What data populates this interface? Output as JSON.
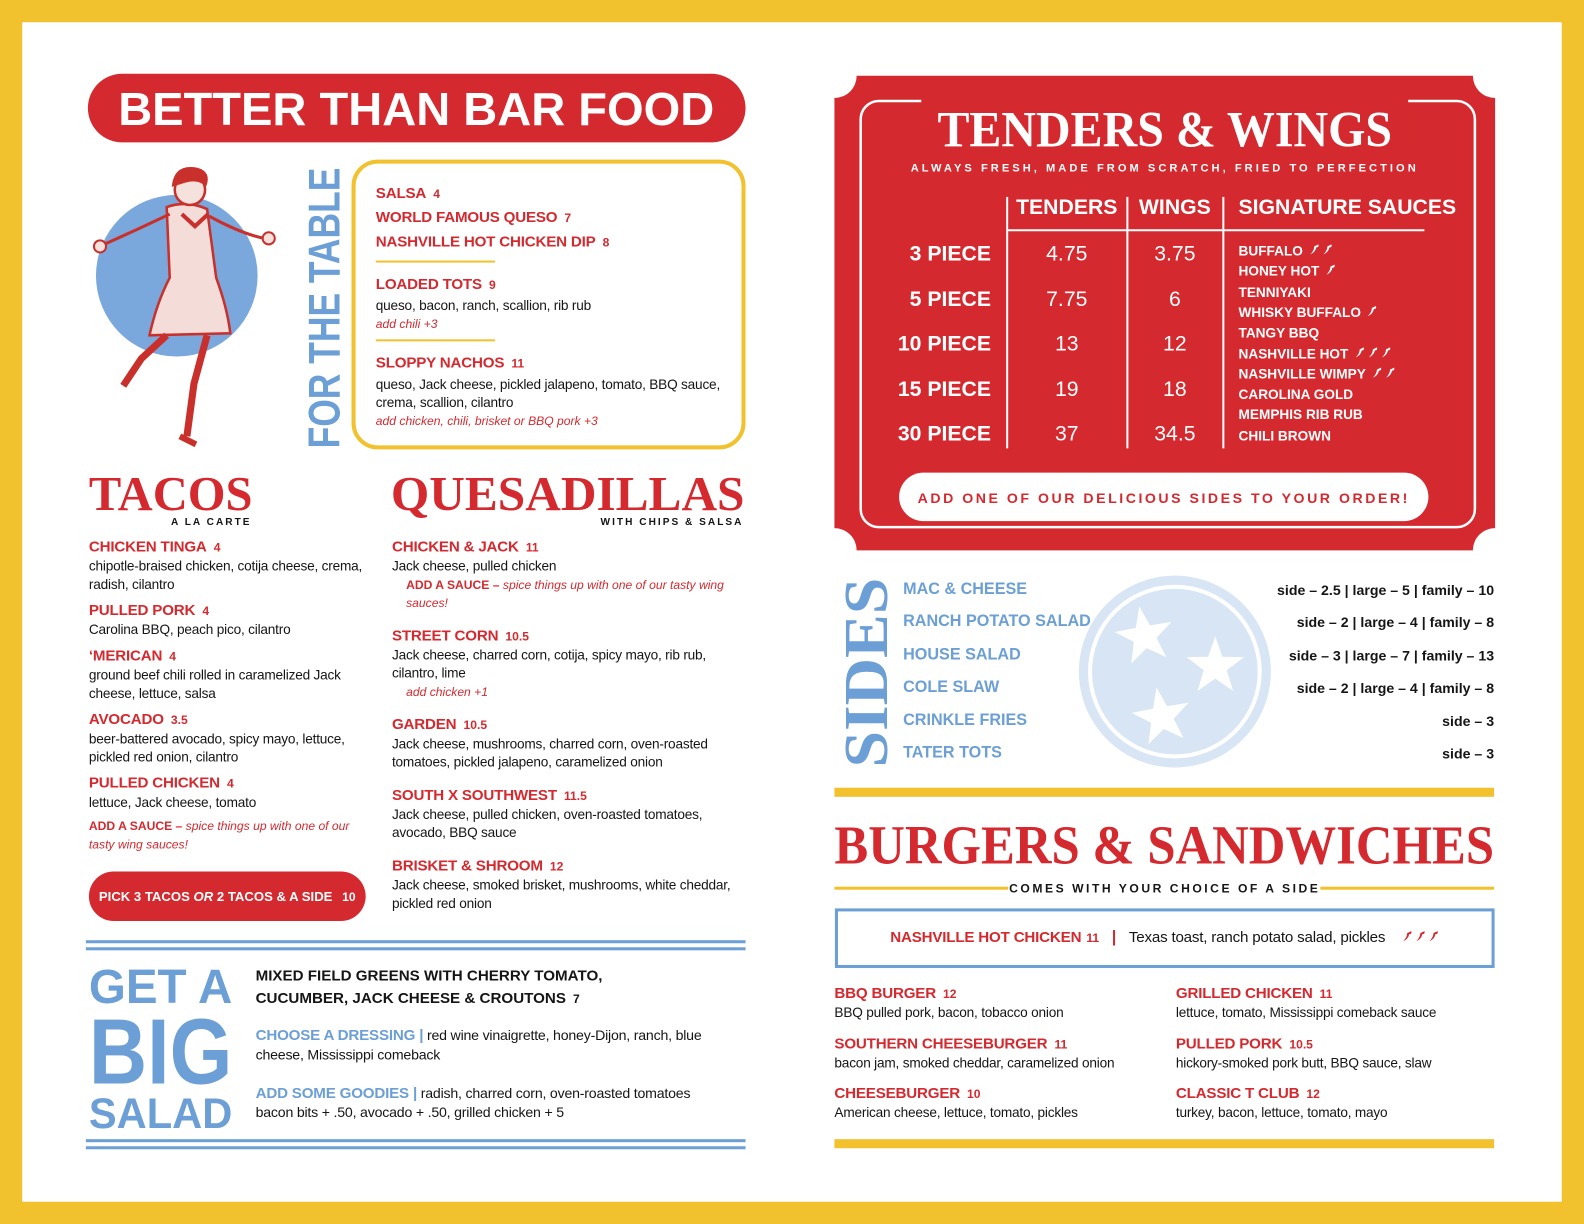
{
  "header": {
    "title": "BETTER THAN BAR FOOD"
  },
  "for_the_table": {
    "title": "FOR THE TABLE",
    "items": [
      {
        "name": "SALSA",
        "price": "4"
      },
      {
        "name": "WORLD FAMOUS QUESO",
        "price": "7"
      },
      {
        "name": "NASHVILLE HOT CHICKEN DIP",
        "price": "8"
      },
      {
        "name": "LOADED TOTS",
        "price": "9",
        "description": "queso, bacon, ranch, scallion, rib rub",
        "note": "add chili +3"
      },
      {
        "name": "SLOPPY NACHOS",
        "price": "11",
        "description": "queso, Jack cheese, pickled jalapeno, tomato, BBQ sauce, crema, scallion, cilantro",
        "note": "add chicken, chili, brisket or BBQ pork +3"
      }
    ]
  },
  "tacos": {
    "title": "TACOS",
    "subtitle": "A LA CARTE",
    "items": [
      {
        "name": "CHICKEN TINGA",
        "price": "4",
        "description": "chipotle-braised chicken, cotija cheese, crema, radish, cilantro"
      },
      {
        "name": "PULLED PORK",
        "price": "4",
        "description": "Carolina BBQ, peach pico, cilantro"
      },
      {
        "name": "‘MERICAN",
        "price": "4",
        "description": "ground beef chili rolled in caramelized Jack cheese, lettuce, salsa"
      },
      {
        "name": "AVOCADO",
        "price": "3.5",
        "description": "beer-battered avocado, spicy mayo, lettuce, pickled red onion, cilantro"
      },
      {
        "name": "PULLED CHICKEN",
        "price": "4",
        "description": "lettuce, Jack cheese, tomato"
      }
    ],
    "note": {
      "label": "ADD A SAUCE –",
      "text": "spice things up with one of our tasty wing sauces!"
    },
    "deal": {
      "parts": [
        "PICK 3 TACOS",
        "OR",
        "2 TACOS & A SIDE"
      ],
      "price": "10"
    }
  },
  "quesadillas": {
    "title": "QUESADILLAS",
    "subtitle": "WITH CHIPS & SALSA",
    "items": [
      {
        "name": "CHICKEN & JACK",
        "price": "11",
        "description": "Jack cheese, pulled chicken",
        "note_label": "ADD A SAUCE –",
        "note": "spice things up with one of our tasty wing sauces!"
      },
      {
        "name": "STREET CORN",
        "price": "10.5",
        "description": "Jack cheese, charred corn, cotija, spicy mayo, rib rub, cilantro, lime",
        "note": "add chicken +1"
      },
      {
        "name": "GARDEN",
        "price": "10.5",
        "description": "Jack cheese, mushrooms, charred corn, oven-roasted tomatoes, pickled jalapeno, caramelized onion"
      },
      {
        "name": "SOUTH X SOUTHWEST",
        "price": "11.5",
        "description": "Jack cheese, pulled chicken, oven-roasted tomatoes, avocado, BBQ sauce"
      },
      {
        "name": "BRISKET & SHROOM",
        "price": "12",
        "description": "Jack cheese, smoked brisket, mushrooms, white cheddar, pickled red onion"
      }
    ]
  },
  "salad": {
    "title": [
      "GET A",
      "BIG",
      "SALAD"
    ],
    "description": "MIXED FIELD GREENS WITH CHERRY TOMATO, CUCUMBER, JACK CHEESE & CROUTONS",
    "price": "7",
    "dressing": {
      "label": "CHOOSE A DRESSING |",
      "text": "red wine vinaigrette, honey-Dijon, ranch, blue cheese, Mississippi comeback"
    },
    "goodies": {
      "label": "ADD SOME GOODIES |",
      "text": "radish, charred corn, oven-roasted tomatoes bacon bits + .50, avocado + .50, grilled chicken + 5"
    }
  },
  "tenders_wings": {
    "title": "TENDERS & WINGS",
    "subtitle": "ALWAYS FRESH, MADE FROM SCRATCH, FRIED TO PERFECTION",
    "columns": [
      "TENDERS",
      "WINGS",
      "SIGNATURE SAUCES"
    ],
    "rows": [
      {
        "label": "3 PIECE",
        "tenders": "4.75",
        "wings": "3.75"
      },
      {
        "label": "5 PIECE",
        "tenders": "7.75",
        "wings": "6"
      },
      {
        "label": "10 PIECE",
        "tenders": "13",
        "wings": "12"
      },
      {
        "label": "15 PIECE",
        "tenders": "19",
        "wings": "18"
      },
      {
        "label": "30 PIECE",
        "tenders": "37",
        "wings": "34.5"
      }
    ],
    "sauces": [
      {
        "name": "BUFFALO",
        "heat": 2
      },
      {
        "name": "HONEY HOT",
        "heat": 1
      },
      {
        "name": "TENNIYAKI",
        "heat": 0
      },
      {
        "name": "WHISKY BUFFALO",
        "heat": 1
      },
      {
        "name": "TANGY BBQ",
        "heat": 0
      },
      {
        "name": "NASHVILLE HOT",
        "heat": 3
      },
      {
        "name": "NASHVILLE WIMPY",
        "heat": 2
      },
      {
        "name": "CAROLINA GOLD",
        "heat": 0
      },
      {
        "name": "MEMPHIS RIB RUB",
        "heat": 0
      },
      {
        "name": "CHILI BROWN",
        "heat": 0
      }
    ],
    "footer": "ADD ONE OF OUR DELICIOUS SIDES TO YOUR ORDER!"
  },
  "sides": {
    "title": "SIDES",
    "items": [
      {
        "name": "MAC & CHEESE",
        "sizes": "side – 2.5 | large – 5 | family – 10"
      },
      {
        "name": "RANCH POTATO SALAD",
        "sizes": "side – 2 | large – 4 | family – 8"
      },
      {
        "name": "HOUSE SALAD",
        "sizes": "side – 3 | large – 7 | family – 13"
      },
      {
        "name": "COLE SLAW",
        "sizes": "side – 2 | large – 4 | family – 8"
      },
      {
        "name": "CRINKLE FRIES",
        "sizes": "side – 3"
      },
      {
        "name": "TATER TOTS",
        "sizes": "side – 3"
      }
    ]
  },
  "burgers": {
    "title": "BURGERS & SANDWICHES",
    "subtitle": "COMES WITH YOUR CHOICE OF A SIDE",
    "featured": {
      "name": "NASHVILLE HOT CHICKEN",
      "price": "11",
      "description": "Texas toast, ranch potato salad, pickles",
      "heat": 3
    },
    "items": [
      {
        "name": "BBQ BURGER",
        "price": "12",
        "description": "BBQ pulled pork, bacon, tobacco onion"
      },
      {
        "name": "GRILLED CHICKEN",
        "price": "11",
        "description": "lettuce, tomato, Mississippi comeback sauce"
      },
      {
        "name": "SOUTHERN CHEESEBURGER",
        "price": "11",
        "description": "bacon jam, smoked cheddar, caramelized onion"
      },
      {
        "name": "PULLED PORK",
        "price": "10.5",
        "description": "hickory-smoked pork butt, BBQ sauce, slaw"
      },
      {
        "name": "CHEESEBURGER",
        "price": "10",
        "description": "American cheese, lettuce, tomato, pickles"
      },
      {
        "name": "CLASSIC T CLUB",
        "price": "12",
        "description": "turkey, bacon, lettuce, tomato, mayo"
      }
    ]
  }
}
